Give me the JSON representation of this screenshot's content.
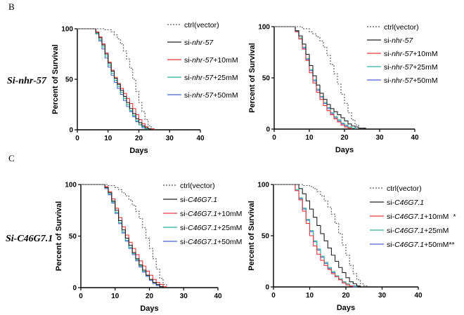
{
  "figure": {
    "panel_letters": [
      "B",
      "C"
    ],
    "row_labels": [
      "Si-nhr-57",
      "Si-C46G7.1"
    ]
  },
  "colors": {
    "ctrl": "#555555",
    "base": "#222222",
    "c10": "#e8383d",
    "c25": "#2bb39a",
    "c50": "#4a62d8"
  },
  "chart_data": [
    {
      "type": "line",
      "panel": "B-left",
      "xlabel": "Days",
      "ylabel": "Percent of Survival",
      "xlim": [
        0,
        40
      ],
      "ylim": [
        0,
        100
      ],
      "xticks": [
        0,
        10,
        20,
        30,
        40
      ],
      "yticks": [
        0,
        50,
        100
      ],
      "legend": "right",
      "series": [
        {
          "name": "ctrl(vector)",
          "style": "dashed",
          "color": "ctrl",
          "x": [
            0,
            6,
            9,
            11,
            12,
            13,
            14,
            15,
            16,
            17,
            18,
            19,
            20,
            21,
            22,
            23,
            24
          ],
          "y": [
            100,
            100,
            99,
            97,
            94,
            90,
            85,
            78,
            70,
            61,
            50,
            38,
            27,
            18,
            10,
            4,
            0
          ]
        },
        {
          "name": "si-nhr-57",
          "parts": [
            "si-",
            "nhr-57",
            ""
          ],
          "style": "solid",
          "color": "base",
          "x": [
            0,
            5,
            6,
            7,
            8,
            9,
            10,
            11,
            12,
            13,
            14,
            15,
            16,
            17,
            18,
            19,
            20,
            21,
            22,
            23,
            24
          ],
          "y": [
            100,
            100,
            96,
            91,
            84,
            75,
            66,
            58,
            51,
            45,
            39,
            33,
            27,
            21,
            16,
            11,
            7,
            4,
            2,
            1,
            0
          ]
        },
        {
          "name": "si-nhr-57+10mM",
          "parts": [
            "si-",
            "nhr-57",
            "+10mM"
          ],
          "style": "solid",
          "color": "c10",
          "x": [
            0,
            5,
            6,
            7,
            8,
            9,
            10,
            11,
            12,
            13,
            14,
            15,
            16,
            17,
            18,
            19,
            20,
            21,
            22,
            23,
            25
          ],
          "y": [
            100,
            100,
            97,
            92,
            85,
            76,
            67,
            59,
            52,
            46,
            41,
            36,
            31,
            26,
            21,
            15,
            10,
            6,
            3,
            1,
            0
          ]
        },
        {
          "name": "si-nhr-57+25mM",
          "parts": [
            "si-",
            "nhr-57",
            "+25mM"
          ],
          "style": "solid",
          "color": "c25",
          "x": [
            0,
            5,
            6,
            7,
            8,
            9,
            10,
            11,
            12,
            13,
            14,
            15,
            16,
            17,
            18,
            19,
            20,
            21,
            22,
            23
          ],
          "y": [
            100,
            100,
            95,
            89,
            82,
            73,
            64,
            56,
            49,
            43,
            37,
            31,
            25,
            19,
            14,
            9,
            5,
            3,
            1,
            0
          ]
        },
        {
          "name": "si-nhr-57+50mM",
          "parts": [
            "si-",
            "nhr-57",
            "+50mM"
          ],
          "style": "solid",
          "color": "c50",
          "x": [
            0,
            5,
            6,
            7,
            8,
            9,
            10,
            11,
            12,
            13,
            14,
            15,
            16,
            17,
            18,
            19,
            20,
            21,
            22,
            23
          ],
          "y": [
            100,
            100,
            95,
            88,
            80,
            71,
            62,
            54,
            47,
            41,
            35,
            29,
            23,
            18,
            13,
            8,
            5,
            2,
            1,
            0
          ]
        }
      ]
    },
    {
      "type": "line",
      "panel": "B-right",
      "xlabel": "Days",
      "ylabel": "Percent of Survival",
      "xlim": [
        0,
        40
      ],
      "ylim": [
        0,
        100
      ],
      "xticks": [
        0,
        10,
        20,
        30,
        40
      ],
      "yticks": [
        0,
        50,
        100
      ],
      "legend": "right",
      "series": [
        {
          "name": "ctrl(vector)",
          "style": "dashed",
          "color": "ctrl",
          "x": [
            0,
            6,
            8,
            10,
            11,
            12,
            13,
            14,
            15,
            16,
            17,
            18,
            19,
            20,
            21,
            22,
            23,
            24,
            25
          ],
          "y": [
            100,
            100,
            98,
            95,
            93,
            90,
            86,
            80,
            72,
            63,
            54,
            44,
            34,
            25,
            16,
            9,
            4,
            1,
            0
          ]
        },
        {
          "name": "si-nhr-57",
          "parts": [
            "si-",
            "nhr-57",
            ""
          ],
          "style": "solid",
          "color": "base",
          "x": [
            0,
            5,
            6,
            7,
            8,
            9,
            10,
            11,
            12,
            13,
            14,
            15,
            16,
            17,
            18,
            19,
            20,
            21,
            22,
            23,
            24,
            26
          ],
          "y": [
            100,
            100,
            96,
            91,
            83,
            73,
            62,
            52,
            43,
            35,
            29,
            24,
            20,
            17,
            14,
            11,
            8,
            5,
            3,
            2,
            1,
            0
          ]
        },
        {
          "name": "si-nhr-57+10mM",
          "parts": [
            "si-",
            "nhr-57",
            "+10mM"
          ],
          "style": "solid",
          "color": "c10",
          "x": [
            0,
            5,
            6,
            7,
            8,
            9,
            10,
            11,
            12,
            13,
            14,
            15,
            16,
            17,
            18,
            19,
            20,
            21,
            22
          ],
          "y": [
            100,
            100,
            95,
            88,
            78,
            67,
            55,
            45,
            36,
            29,
            23,
            18,
            14,
            10,
            7,
            4,
            2,
            1,
            0
          ]
        },
        {
          "name": "si-nhr-57+25mM",
          "parts": [
            "si-",
            "nhr-57",
            "+25mM"
          ],
          "style": "solid",
          "color": "c25",
          "x": [
            0,
            5,
            6,
            7,
            8,
            9,
            10,
            11,
            12,
            13,
            14,
            15,
            16,
            17,
            18,
            19,
            20,
            21,
            22,
            23
          ],
          "y": [
            100,
            100,
            96,
            89,
            80,
            69,
            58,
            48,
            39,
            32,
            26,
            21,
            16,
            12,
            9,
            6,
            4,
            2,
            1,
            0
          ]
        },
        {
          "name": "si-nhr-57+50mM",
          "parts": [
            "si-",
            "nhr-57",
            "+50mM"
          ],
          "style": "solid",
          "color": "c50",
          "x": [
            0,
            5,
            6,
            7,
            8,
            9,
            10,
            11,
            12,
            13,
            14,
            15,
            16,
            17,
            18,
            19,
            20,
            21,
            22,
            23
          ],
          "y": [
            100,
            100,
            95,
            88,
            79,
            68,
            57,
            47,
            38,
            31,
            25,
            20,
            15,
            11,
            8,
            5,
            3,
            2,
            1,
            0
          ]
        }
      ]
    },
    {
      "type": "line",
      "panel": "C-left",
      "xlabel": "Days",
      "ylabel": "Percent of Survival",
      "xlim": [
        0,
        40
      ],
      "ylim": [
        0,
        100
      ],
      "xticks": [
        0,
        10,
        20,
        30,
        40
      ],
      "yticks": [
        0,
        50,
        100
      ],
      "legend": "right",
      "series": [
        {
          "name": "ctrl(vector)",
          "style": "dashed",
          "color": "ctrl",
          "x": [
            0,
            6,
            8,
            10,
            11,
            12,
            13,
            14,
            15,
            16,
            17,
            18,
            19,
            20,
            21,
            22,
            23,
            24,
            25
          ],
          "y": [
            100,
            100,
            99,
            97,
            95,
            92,
            89,
            85,
            80,
            74,
            67,
            58,
            48,
            38,
            28,
            18,
            9,
            3,
            0
          ]
        },
        {
          "name": "si-C46G7.1",
          "parts": [
            "si-",
            "C46G7.1",
            ""
          ],
          "style": "solid",
          "color": "base",
          "x": [
            0,
            6,
            7,
            8,
            9,
            10,
            11,
            12,
            13,
            14,
            15,
            16,
            17,
            18,
            19,
            20,
            21,
            22,
            23,
            24
          ],
          "y": [
            100,
            100,
            97,
            92,
            84,
            75,
            65,
            56,
            48,
            41,
            34,
            28,
            22,
            17,
            12,
            8,
            5,
            3,
            1,
            0
          ]
        },
        {
          "name": "si-C46G7.1+10mM",
          "parts": [
            "si-",
            "C46G7.1",
            "+10mM"
          ],
          "style": "solid",
          "color": "c10",
          "x": [
            0,
            6,
            7,
            8,
            9,
            10,
            11,
            12,
            13,
            14,
            15,
            16,
            17,
            18,
            19,
            20,
            21,
            22,
            23,
            24,
            25
          ],
          "y": [
            100,
            100,
            98,
            93,
            86,
            77,
            68,
            59,
            51,
            44,
            38,
            32,
            26,
            21,
            16,
            12,
            8,
            5,
            3,
            1,
            0
          ]
        },
        {
          "name": "si-C46G7.1+25mM",
          "parts": [
            "si-",
            "C46G7.1",
            "+25mM"
          ],
          "style": "solid",
          "color": "c25",
          "x": [
            0,
            6,
            7,
            8,
            9,
            10,
            11,
            12,
            13,
            14,
            15,
            16,
            17,
            18,
            19,
            20,
            21,
            22,
            23,
            24
          ],
          "y": [
            100,
            100,
            97,
            91,
            83,
            73,
            63,
            54,
            46,
            39,
            33,
            27,
            21,
            16,
            12,
            8,
            5,
            3,
            1,
            0
          ]
        },
        {
          "name": "si-C46G7.1+50mM",
          "parts": [
            "si-",
            "C46G7.1",
            "+50mM"
          ],
          "style": "solid",
          "color": "c50",
          "x": [
            0,
            6,
            7,
            8,
            9,
            10,
            11,
            12,
            13,
            14,
            15,
            16,
            17,
            18,
            19,
            20,
            21,
            22,
            23,
            24
          ],
          "y": [
            100,
            100,
            96,
            90,
            82,
            72,
            62,
            53,
            45,
            38,
            32,
            26,
            20,
            15,
            11,
            7,
            4,
            2,
            1,
            0
          ]
        }
      ]
    },
    {
      "type": "line",
      "panel": "C-right",
      "xlabel": "Days",
      "ylabel": "Percent of Survival",
      "xlim": [
        0,
        40
      ],
      "ylim": [
        0,
        100
      ],
      "xticks": [
        0,
        10,
        20,
        30,
        40
      ],
      "yticks": [
        0,
        50,
        100
      ],
      "legend": "right",
      "series": [
        {
          "name": "ctrl(vector)",
          "style": "dashed",
          "color": "ctrl",
          "x": [
            0,
            6,
            8,
            10,
            11,
            12,
            13,
            14,
            15,
            16,
            17,
            18,
            19,
            20,
            21,
            22,
            23,
            24,
            25,
            26
          ],
          "y": [
            100,
            100,
            99,
            98,
            96,
            93,
            89,
            84,
            78,
            71,
            62,
            52,
            41,
            31,
            21,
            13,
            7,
            3,
            1,
            0
          ]
        },
        {
          "name": "si-C46G7.1",
          "parts": [
            "si-",
            "C46G7.1",
            ""
          ],
          "style": "solid",
          "color": "base",
          "x": [
            0,
            6,
            7,
            8,
            9,
            10,
            11,
            12,
            13,
            14,
            15,
            16,
            17,
            18,
            19,
            20,
            21,
            22,
            23,
            24
          ],
          "y": [
            100,
            100,
            96,
            91,
            84,
            76,
            68,
            60,
            52,
            45,
            38,
            31,
            25,
            19,
            14,
            9,
            5,
            3,
            1,
            0
          ]
        },
        {
          "name": "si-C46G7.1+10mM",
          "parts": [
            "si-",
            "C46G7.1",
            "+10mM"
          ],
          "style": "solid",
          "color": "c10",
          "x": [
            0,
            5,
            6,
            7,
            8,
            9,
            10,
            11,
            12,
            13,
            14,
            15,
            16,
            17,
            18,
            19,
            20,
            21,
            22
          ],
          "y": [
            100,
            100,
            94,
            85,
            74,
            62,
            50,
            40,
            32,
            26,
            21,
            17,
            13,
            10,
            7,
            4,
            2,
            1,
            0
          ]
        },
        {
          "name": "si-C46G7.1+25mM",
          "parts": [
            "si-",
            "C46G7.1",
            "+25mM"
          ],
          "style": "solid",
          "color": "c25",
          "x": [
            0,
            5,
            6,
            7,
            8,
            9,
            10,
            11,
            12,
            13,
            14,
            15,
            16,
            17,
            18,
            19,
            20,
            21,
            22,
            23
          ],
          "y": [
            100,
            100,
            95,
            87,
            77,
            66,
            55,
            45,
            37,
            30,
            24,
            19,
            15,
            11,
            8,
            5,
            3,
            1,
            1,
            0
          ]
        },
        {
          "name": "si-C46G7.1+50mM",
          "parts": [
            "si-",
            "C46G7.1",
            "+50mM"
          ],
          "style": "solid",
          "color": "c50",
          "x": [
            0,
            5,
            6,
            7,
            8,
            9,
            10,
            11,
            12,
            13,
            14,
            15,
            16,
            17,
            18,
            19,
            20,
            21,
            22,
            23
          ],
          "y": [
            100,
            100,
            94,
            86,
            76,
            65,
            54,
            44,
            36,
            29,
            23,
            18,
            14,
            10,
            7,
            4,
            2,
            1,
            0,
            0
          ]
        }
      ],
      "annotations": [
        {
          "series": "si-C46G7.1+10mM",
          "text": "*"
        },
        {
          "series": "si-C46G7.1+50mM",
          "text": "**"
        }
      ]
    }
  ]
}
